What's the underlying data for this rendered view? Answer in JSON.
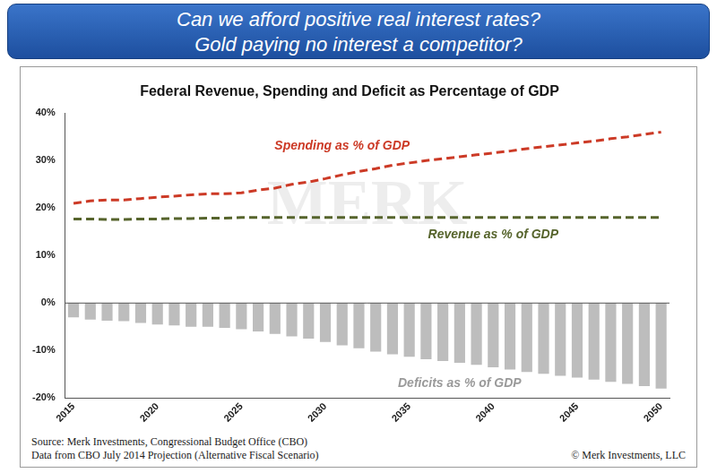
{
  "header": {
    "lines": [
      "Can we afford positive real interest rates?",
      "Gold paying no interest a competitor?"
    ]
  },
  "chart_data": {
    "type": "bar",
    "title": "Federal Revenue, Spending and Deficit as Percentage of GDP",
    "watermark": "MERK",
    "categories": [
      "2015",
      null,
      null,
      null,
      null,
      "2020",
      null,
      null,
      null,
      null,
      "2025",
      null,
      null,
      null,
      null,
      "2030",
      null,
      null,
      null,
      null,
      "2035",
      null,
      null,
      null,
      null,
      "2040",
      null,
      null,
      null,
      null,
      "2045",
      null,
      null,
      null,
      null,
      "2050"
    ],
    "series": [
      {
        "name": "Spending as % of GDP",
        "type": "line",
        "line_style": "dashed",
        "color": "#cc3a26",
        "values": [
          21,
          21.5,
          21.7,
          21.7,
          22,
          22.3,
          22.5,
          22.8,
          23,
          23,
          23.2,
          23.8,
          24.2,
          25,
          25.5,
          26.2,
          27,
          27.7,
          28.3,
          29,
          29.5,
          30,
          30.4,
          30.8,
          31.2,
          31.6,
          32,
          32.5,
          32.9,
          33.3,
          33.7,
          34.1,
          34.6,
          35,
          35.5,
          36
        ]
      },
      {
        "name": "Revenue as % of GDP",
        "type": "line",
        "line_style": "dashed",
        "color": "#56642c",
        "values": [
          17.7,
          17.7,
          17.6,
          17.6,
          17.7,
          17.7,
          17.8,
          17.8,
          17.9,
          17.9,
          18,
          18,
          18,
          18,
          18,
          18,
          18,
          18,
          18,
          18,
          18,
          18,
          18,
          18,
          18,
          18,
          18,
          18,
          18,
          18,
          18,
          18,
          18,
          18,
          18,
          18
        ]
      },
      {
        "name": "Deficits as % of GDP",
        "type": "bar",
        "color": "#bdbdbd",
        "values": [
          -3,
          -3.5,
          -3.7,
          -3.8,
          -4.2,
          -4.5,
          -4.7,
          -5,
          -5,
          -5.2,
          -5.5,
          -6,
          -6.5,
          -7,
          -7.5,
          -8.2,
          -8.9,
          -9.5,
          -10.2,
          -10.8,
          -11.3,
          -11.8,
          -12.2,
          -12.6,
          -13,
          -13.5,
          -14,
          -14.5,
          -14.9,
          -15.3,
          -15.7,
          -16.1,
          -16.6,
          -17,
          -17.5,
          -18
        ]
      }
    ],
    "ylim": [
      -20,
      40
    ],
    "yticks": [
      {
        "value": -20,
        "label": "-20%"
      },
      {
        "value": -10,
        "label": "-10%"
      },
      {
        "value": 0,
        "label": "0%"
      },
      {
        "value": 10,
        "label": "10%"
      },
      {
        "value": 20,
        "label": "20%"
      },
      {
        "value": 30,
        "label": "30%"
      },
      {
        "value": 40,
        "label": "40%"
      }
    ],
    "grid": false
  },
  "footer": {
    "notes": [
      "Source: Merk Investments, Congressional Budget Office (CBO)",
      "Data from CBO July 2014 Projection (Alternative Fiscal Scenario)"
    ],
    "copyright": "© Merk Investments, LLC"
  }
}
